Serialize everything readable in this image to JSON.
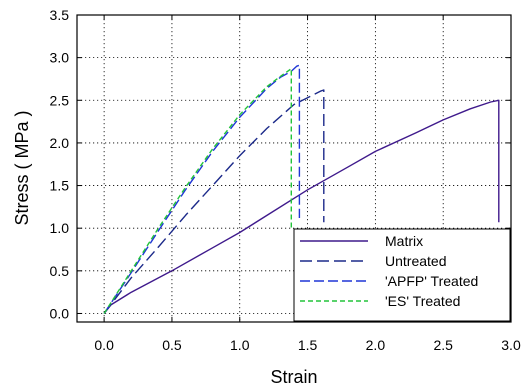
{
  "chart_data": {
    "type": "line",
    "xlabel": "Strain",
    "ylabel": "Stress ( MPa )",
    "xlim": [
      -0.2,
      3.0
    ],
    "ylim": [
      -0.1,
      3.5
    ],
    "xticks": [
      "0.0",
      "0.5",
      "1.0",
      "1.5",
      "2.0",
      "2.5",
      "3.0"
    ],
    "yticks": [
      "0.0",
      "0.5",
      "1.0",
      "1.5",
      "2.0",
      "2.5",
      "3.0",
      "3.5"
    ],
    "grid": true,
    "legend_position": "bottom-right",
    "series": [
      {
        "name": "Matrix",
        "color": "#3f1a8c",
        "dash": "solid",
        "x": [
          0.0,
          0.05,
          0.2,
          0.5,
          0.8,
          1.0,
          1.2,
          1.5,
          1.8,
          2.0,
          2.3,
          2.5,
          2.7,
          2.85,
          2.91,
          2.91
        ],
        "y": [
          0.0,
          0.1,
          0.25,
          0.5,
          0.77,
          0.95,
          1.15,
          1.45,
          1.72,
          1.9,
          2.12,
          2.27,
          2.4,
          2.48,
          2.5,
          1.07
        ]
      },
      {
        "name": "Untreated",
        "color": "#1c2a8a",
        "dash": "long",
        "x": [
          0.0,
          0.2,
          0.4,
          0.6,
          0.8,
          1.0,
          1.2,
          1.4,
          1.5,
          1.6,
          1.62,
          1.62
        ],
        "y": [
          0.0,
          0.42,
          0.78,
          1.15,
          1.5,
          1.85,
          2.17,
          2.45,
          2.53,
          2.61,
          2.62,
          1.07
        ]
      },
      {
        "name": "'APFP' Treated",
        "color": "#1f35d6",
        "dash": "medium",
        "x": [
          0.0,
          0.2,
          0.4,
          0.6,
          0.8,
          1.0,
          1.2,
          1.3,
          1.38,
          1.42,
          1.44,
          1.44
        ],
        "y": [
          0.0,
          0.48,
          0.97,
          1.45,
          1.9,
          2.3,
          2.64,
          2.77,
          2.84,
          2.9,
          2.91,
          1.12
        ]
      },
      {
        "name": "'ES' Treated",
        "color": "#22c43a",
        "dash": "short",
        "x": [
          0.0,
          0.2,
          0.4,
          0.6,
          0.8,
          1.0,
          1.2,
          1.3,
          1.38,
          1.38
        ],
        "y": [
          0.0,
          0.5,
          1.0,
          1.48,
          1.93,
          2.33,
          2.66,
          2.78,
          2.87,
          1.0
        ]
      }
    ]
  }
}
